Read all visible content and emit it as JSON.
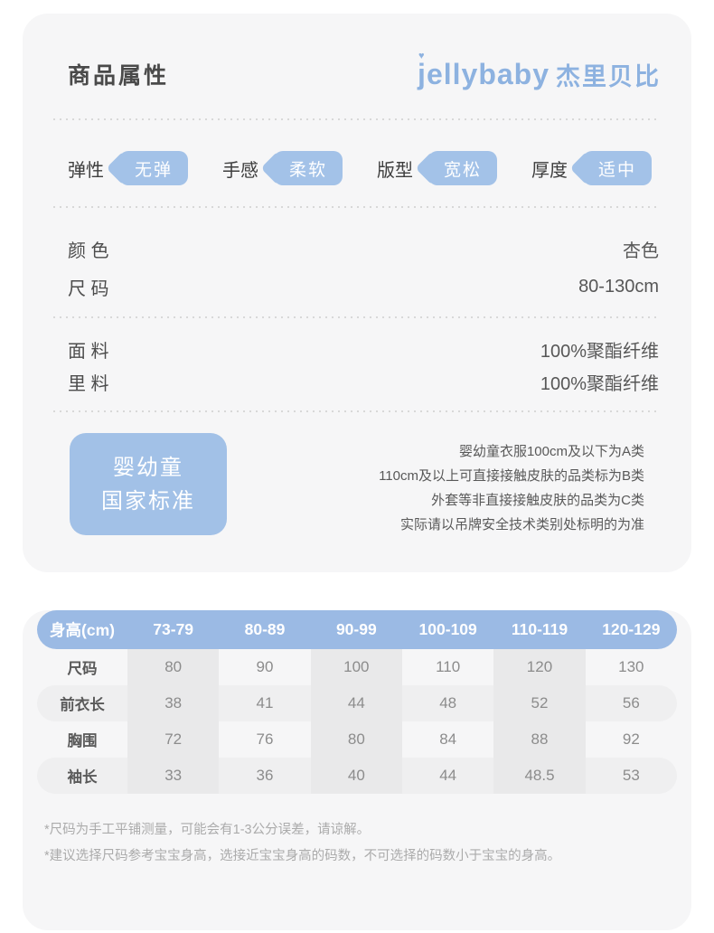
{
  "header": {
    "title": "商品属性",
    "brand_latin": "jellybaby",
    "brand_heart": "♥",
    "brand_chinese": "杰里贝比"
  },
  "attributes": {
    "pills": [
      {
        "label": "弹性",
        "value": "无弹"
      },
      {
        "label": "手感",
        "value": "柔软"
      },
      {
        "label": "版型",
        "value": "宽松"
      },
      {
        "label": "厚度",
        "value": "适中"
      }
    ],
    "section1": [
      {
        "label": "颜 色",
        "value": "杏色"
      },
      {
        "label": "尺 码",
        "value": "80-130cm"
      }
    ],
    "section2": [
      {
        "label": "面 料",
        "value": "100%聚酯纤维"
      },
      {
        "label": "里 料",
        "value": "100%聚酯纤维"
      }
    ]
  },
  "standard": {
    "badge_line1": "婴幼童",
    "badge_line2": "国家标准",
    "notes": [
      "婴幼童衣服100cm及以下为A类",
      "110cm及以上可直接接触皮肤的品类标为B类",
      "外套等非直接接触皮肤的品类为C类",
      "实际请以吊牌安全技术类别处标明的为准"
    ]
  },
  "size_table": {
    "header": [
      "身高(cm)",
      "73-79",
      "80-89",
      "90-99",
      "100-109",
      "110-119",
      "120-129"
    ],
    "rows": [
      {
        "label": "尺码",
        "values": [
          "80",
          "90",
          "100",
          "110",
          "120",
          "130"
        ]
      },
      {
        "label": "前衣长",
        "values": [
          "38",
          "41",
          "44",
          "48",
          "52",
          "56"
        ]
      },
      {
        "label": "胸围",
        "values": [
          "72",
          "76",
          "80",
          "84",
          "88",
          "92"
        ]
      },
      {
        "label": "袖长",
        "values": [
          "33",
          "36",
          "40",
          "44",
          "48.5",
          "53"
        ]
      }
    ],
    "footnotes": [
      "*尺码为手工平铺测量，可能会有1-3公分误差，请谅解。",
      "*建议选择尺码参考宝宝身高，选接近宝宝身高的码数，不可选择的码数小于宝宝的身高。"
    ]
  },
  "colors": {
    "accent_blue": "#a3c2e8",
    "table_header_blue": "#9bbae4",
    "brand_blue": "#8db2e0",
    "card_bg": "#f6f6f7",
    "stripe_gray": "#e9e9ea",
    "band_gray": "#efeff0"
  }
}
